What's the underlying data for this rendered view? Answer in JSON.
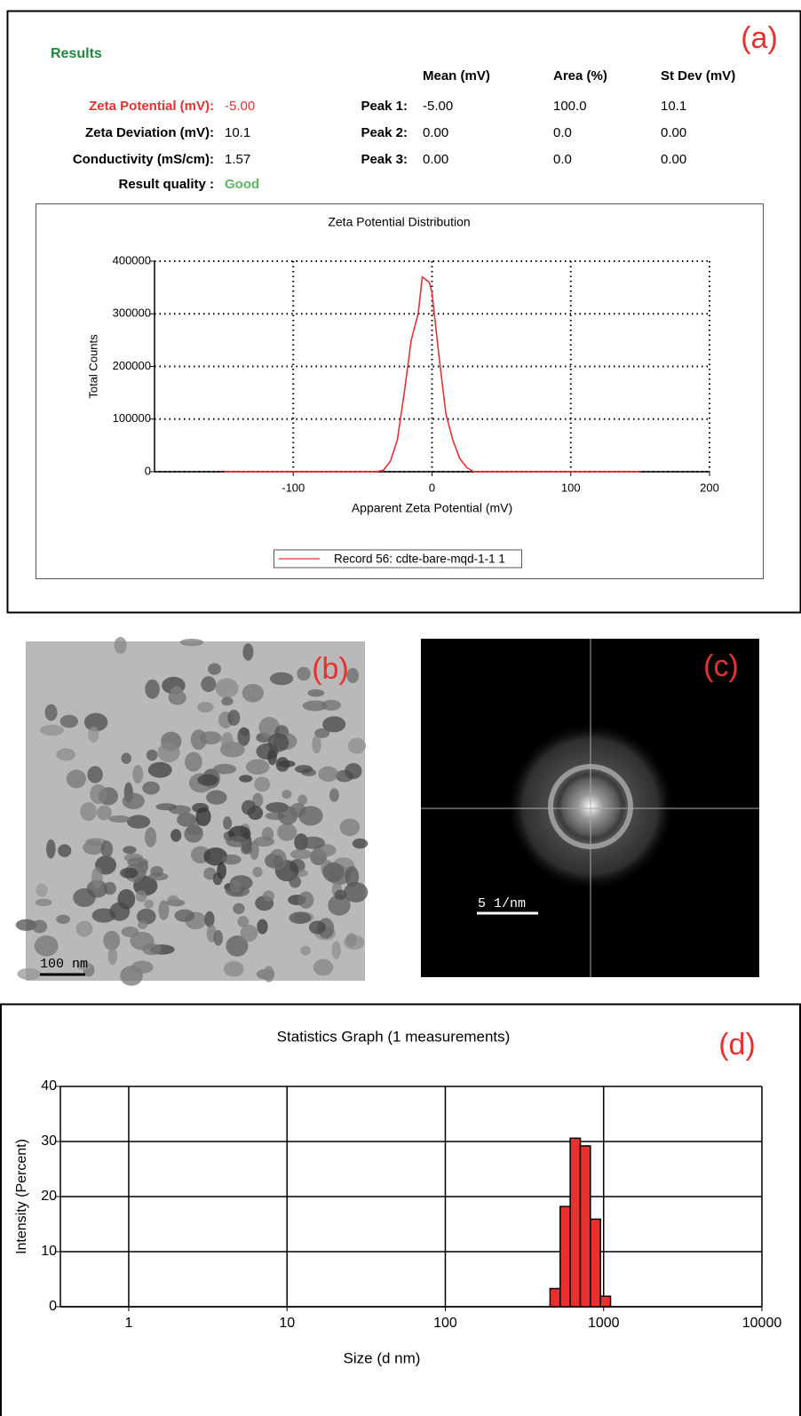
{
  "panels": {
    "a": "(a)",
    "b": "(b)",
    "c": "(c)",
    "d": "(d)"
  },
  "results": {
    "title": "Results",
    "rows": [
      {
        "label": "Zeta Potential (mV):",
        "value": "-5.00"
      },
      {
        "label": "Zeta Deviation (mV):",
        "value": "10.1"
      },
      {
        "label": "Conductivity (mS/cm):",
        "value": "1.57"
      },
      {
        "label": "Result quality :",
        "value": "Good"
      }
    ],
    "peaks": {
      "columns": [
        "Mean (mV)",
        "Area (%)",
        "St Dev (mV)"
      ],
      "rows": [
        {
          "label": "Peak 1:",
          "cells": [
            "-5.00",
            "100.0",
            "10.1"
          ]
        },
        {
          "label": "Peak 2:",
          "cells": [
            "0.00",
            "0.0",
            "0.00"
          ]
        },
        {
          "label": "Peak 3:",
          "cells": [
            "0.00",
            "0.0",
            "0.00"
          ]
        }
      ]
    }
  },
  "scale_bars": {
    "b": "100 nm",
    "c": "5 1/nm"
  },
  "chart_data": [
    {
      "type": "line",
      "title": "Zeta Potential Distribution",
      "x_label": "Apparent Zeta Potential (mV)",
      "y_label": "Total Counts",
      "x": [
        -150,
        -40,
        -35,
        -30,
        -25,
        -20,
        -15,
        -10,
        -7,
        -2,
        0,
        5,
        10,
        15,
        20,
        25,
        30,
        150
      ],
      "series": [
        {
          "name": "Record 56: cdte-bare-mqd-1-1 1",
          "color": "#e8312f",
          "values": [
            0,
            0,
            3000,
            20000,
            60000,
            150000,
            250000,
            300000,
            370000,
            360000,
            340000,
            220000,
            110000,
            60000,
            25000,
            8000,
            0,
            0
          ]
        }
      ],
      "xlim": [
        -200,
        200
      ],
      "xticks": [
        -100,
        0,
        100,
        200
      ],
      "ylim": [
        0,
        400000
      ],
      "yticks": [
        0,
        100000,
        200000,
        300000,
        400000
      ],
      "grid": "dotted",
      "legend": "bottom"
    },
    {
      "type": "histogram",
      "title": "Statistics Graph (1 measurements)",
      "x_label": "Size (d nm)",
      "y_label": "Intensity (Percent)",
      "bins": [
        458.7,
        531.2,
        615.1,
        712.4,
        825.0,
        955.4,
        1106
      ],
      "values": [
        3.3,
        18.2,
        30.6,
        29.2,
        15.9,
        1.9
      ],
      "color": "#e8312f",
      "xscale": "log",
      "xlim": [
        0.37,
        10000
      ],
      "xticks": [
        1,
        10,
        100,
        1000,
        10000
      ],
      "ylim": [
        0,
        40
      ],
      "yticks": [
        0,
        10,
        20,
        30,
        40
      ],
      "grid": "solid"
    }
  ]
}
